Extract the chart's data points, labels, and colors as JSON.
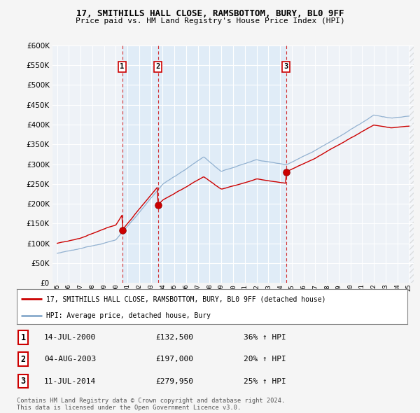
{
  "title": "17, SMITHILLS HALL CLOSE, RAMSBOTTOM, BURY, BL0 9FF",
  "subtitle": "Price paid vs. HM Land Registry's House Price Index (HPI)",
  "ytick_values": [
    0,
    50000,
    100000,
    150000,
    200000,
    250000,
    300000,
    350000,
    400000,
    450000,
    500000,
    550000,
    600000
  ],
  "xlim_start": 1994.6,
  "xlim_end": 2025.4,
  "ylim": [
    0,
    600000
  ],
  "background_color": "#f5f5f5",
  "plot_bg_color": "#eef2f7",
  "grid_color": "#ffffff",
  "red_line_color": "#cc0000",
  "blue_line_color": "#88aacc",
  "vline_color": "#cc0000",
  "shade_color": "#d8e8f8",
  "sale_1_x": 2000.54,
  "sale_1_y": 132500,
  "sale_1_label": "1",
  "sale_1_date": "14-JUL-2000",
  "sale_1_price": "£132,500",
  "sale_1_hpi": "36% ↑ HPI",
  "sale_2_x": 2003.59,
  "sale_2_y": 197000,
  "sale_2_label": "2",
  "sale_2_date": "04-AUG-2003",
  "sale_2_price": "£197,000",
  "sale_2_hpi": "20% ↑ HPI",
  "sale_3_x": 2014.53,
  "sale_3_y": 279950,
  "sale_3_label": "3",
  "sale_3_date": "11-JUL-2014",
  "sale_3_price": "£279,950",
  "sale_3_hpi": "25% ↑ HPI",
  "legend_line1": "17, SMITHILLS HALL CLOSE, RAMSBOTTOM, BURY, BL0 9FF (detached house)",
  "legend_line2": "HPI: Average price, detached house, Bury",
  "footnote1": "Contains HM Land Registry data © Crown copyright and database right 2024.",
  "footnote2": "This data is licensed under the Open Government Licence v3.0."
}
